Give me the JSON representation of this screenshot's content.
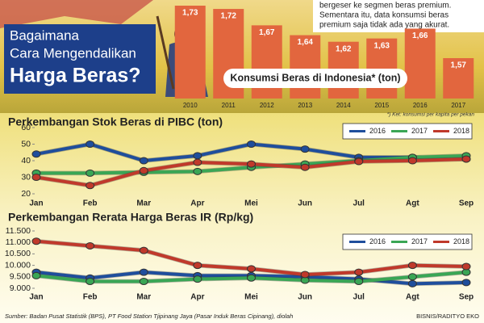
{
  "header": {
    "title_lines": [
      "Bagaimana",
      "Cara Mengendalikan",
      "Harga Beras?"
    ],
    "intro": [
      "bergeser ke segmen beras premium.",
      "Sementara itu, data konsumsi beras",
      "premium saja tidak ada yang akurat."
    ]
  },
  "source": "Sumber: Badan Pusat Statistik (BPS), PT Food Station Tjipinang Jaya (Pasar Induk Beras Cipinang), diolah",
  "credit": "BISNIS/RADITYO EKO",
  "chart_data": [
    {
      "type": "bar",
      "title": "Konsumsi Beras di Indonesia* (ton)",
      "note": "*) Ket: konsumsi per kapita per pekan",
      "categories": [
        "2010",
        "2011",
        "2012",
        "2013",
        "2014",
        "2015",
        "2016",
        "2017"
      ],
      "values": [
        1.73,
        1.72,
        1.67,
        1.64,
        1.62,
        1.63,
        1.66,
        1.57
      ],
      "value_labels": [
        "1,73",
        "1,72",
        "1,67",
        "1,64",
        "1,62",
        "1,63",
        "1,66",
        "1,57"
      ],
      "color": "#e2663e"
    },
    {
      "type": "line",
      "title": "Perkembangan Stok Beras di PIBC (ton)",
      "categories": [
        "Jan",
        "Feb",
        "Mar",
        "Apr",
        "Mei",
        "Jun",
        "Jul",
        "Agt",
        "Sep"
      ],
      "ylim": [
        20,
        60
      ],
      "yticks": [
        20,
        30,
        40,
        50,
        60
      ],
      "grid": false,
      "series": [
        {
          "name": "2016",
          "color": "#1f4e9c",
          "values": [
            44,
            50,
            40,
            43,
            50,
            47,
            42,
            42,
            41
          ]
        },
        {
          "name": "2017",
          "color": "#3aa655",
          "values": [
            32.5,
            32.5,
            33,
            33.5,
            36,
            38,
            40,
            42,
            43
          ]
        },
        {
          "name": "2018",
          "color": "#c0392b",
          "values": [
            30,
            25,
            34,
            39,
            38,
            36,
            39.5,
            40,
            41
          ]
        }
      ]
    },
    {
      "type": "line",
      "title": "Perkembangan Rerata Harga Beras IR (Rp/kg)",
      "categories": [
        "Jan",
        "Feb",
        "Mar",
        "Apr",
        "Mei",
        "Jun",
        "Jul",
        "Agt",
        "Sep"
      ],
      "ylim": [
        9000,
        11500
      ],
      "yticks": [
        {
          "value": 9000,
          "label": "9.000"
        },
        {
          "value": 9500,
          "label": "9.500"
        },
        {
          "value": 10000,
          "label": "10.000"
        },
        {
          "value": 10500,
          "label": "10.500"
        },
        {
          "value": 11000,
          "label": "11.000"
        },
        {
          "value": 11500,
          "label": "11.500"
        }
      ],
      "grid": false,
      "series": [
        {
          "name": "2016",
          "color": "#1f4e9c",
          "values": [
            9700,
            9450,
            9700,
            9550,
            9550,
            9500,
            9400,
            9200,
            9250
          ]
        },
        {
          "name": "2017",
          "color": "#3aa655",
          "values": [
            9550,
            9300,
            9300,
            9400,
            9450,
            9350,
            9300,
            9500,
            9700
          ]
        },
        {
          "name": "2018",
          "color": "#c0392b",
          "values": [
            11050,
            10850,
            10650,
            10000,
            9850,
            9600,
            9700,
            10000,
            9950
          ]
        }
      ]
    }
  ]
}
